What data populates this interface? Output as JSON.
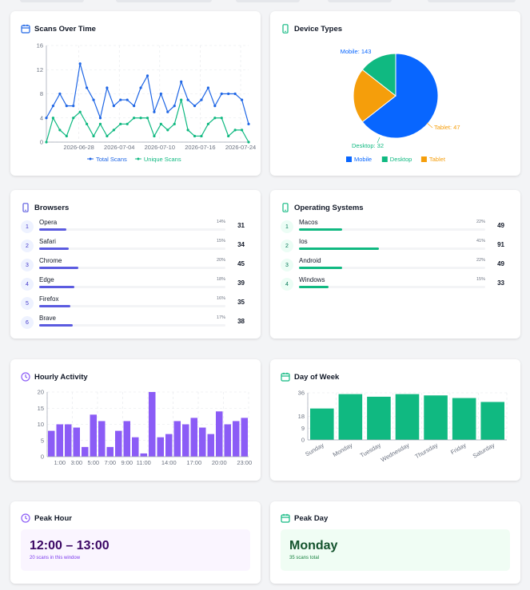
{
  "colors": {
    "blue": "#1f66e5",
    "green": "#10b981",
    "orange": "#f59e0b",
    "purple": "#8b5cf6",
    "bar_blue": "#5b5be0",
    "bar_green": "#10b981",
    "pie_blue": "#0866ff",
    "pie_green": "#10b981",
    "pie_orange": "#f59e0b"
  },
  "scans_over_time": {
    "title": "Scans Over Time",
    "icon": "calendar-icon",
    "chart_data": {
      "type": "line",
      "x_ticks": [
        "2026-06-28",
        "2026-07-04",
        "2026-07-10",
        "2026-07-16",
        "2026-07-24"
      ],
      "ylim": [
        0,
        16
      ],
      "y_ticks": [
        "0",
        "4",
        "8",
        "12",
        "16"
      ],
      "grid": true,
      "legend": "bottom",
      "series": [
        {
          "name": "Total Scans",
          "color": "#1f66e5",
          "values": [
            4,
            6,
            8,
            6,
            6,
            13,
            9,
            7,
            4,
            9,
            6,
            7,
            7,
            6,
            9,
            11,
            5,
            8,
            5,
            6,
            10,
            7,
            6,
            7,
            9,
            6,
            8,
            8,
            8,
            7,
            3
          ]
        },
        {
          "name": "Unique Scans",
          "color": "#10b981",
          "values": [
            0,
            4,
            2,
            1,
            4,
            5,
            3,
            1,
            3,
            1,
            2,
            3,
            3,
            4,
            4,
            4,
            1,
            3,
            2,
            3,
            7,
            2,
            1,
            1,
            3,
            4,
            4,
            1,
            2,
            2,
            0
          ]
        }
      ]
    }
  },
  "device_types": {
    "title": "Device Types",
    "icon": "phone-icon",
    "chart_data": {
      "type": "pie",
      "legend": "bottom",
      "slices": [
        {
          "name": "Mobile",
          "value": 143,
          "label": "Mobile: 143",
          "color": "#0866ff"
        },
        {
          "name": "Tablet",
          "value": 47,
          "label": "Tablet: 47",
          "color": "#f59e0b"
        },
        {
          "name": "Desktop",
          "value": 32,
          "label": "Desktop: 32",
          "color": "#10b981"
        }
      ],
      "legend_items": [
        "Mobile",
        "Desktop",
        "Tablet"
      ]
    }
  },
  "browsers": {
    "title": "Browsers",
    "icon": "phone-icon",
    "items": [
      {
        "rank": "1",
        "name": "Opera",
        "pct": "14%",
        "fraction": 0.14,
        "count": "31"
      },
      {
        "rank": "2",
        "name": "Safari",
        "pct": "15%",
        "fraction": 0.15,
        "count": "34"
      },
      {
        "rank": "3",
        "name": "Chrome",
        "pct": "20%",
        "fraction": 0.2,
        "count": "45"
      },
      {
        "rank": "4",
        "name": "Edge",
        "pct": "18%",
        "fraction": 0.18,
        "count": "39"
      },
      {
        "rank": "5",
        "name": "Firefox",
        "pct": "16%",
        "fraction": 0.16,
        "count": "35"
      },
      {
        "rank": "6",
        "name": "Brave",
        "pct": "17%",
        "fraction": 0.17,
        "count": "38"
      }
    ]
  },
  "operating_systems": {
    "title": "Operating Systems",
    "icon": "phone-icon",
    "items": [
      {
        "rank": "1",
        "name": "Macos",
        "pct": "22%",
        "fraction": 0.22,
        "count": "49"
      },
      {
        "rank": "2",
        "name": "Ios",
        "pct": "41%",
        "fraction": 0.41,
        "count": "91"
      },
      {
        "rank": "3",
        "name": "Android",
        "pct": "22%",
        "fraction": 0.22,
        "count": "49"
      },
      {
        "rank": "4",
        "name": "Windows",
        "pct": "15%",
        "fraction": 0.15,
        "count": "33"
      }
    ]
  },
  "hourly_activity": {
    "title": "Hourly Activity",
    "icon": "clock-icon",
    "chart_data": {
      "type": "bar",
      "categories": [
        "0:00",
        "1:00",
        "2:00",
        "3:00",
        "4:00",
        "5:00",
        "6:00",
        "7:00",
        "8:00",
        "9:00",
        "10:00",
        "11:00",
        "12:00",
        "13:00",
        "14:00",
        "15:00",
        "16:00",
        "17:00",
        "18:00",
        "19:00",
        "20:00",
        "21:00",
        "22:00",
        "23:00"
      ],
      "x_tick_labels": [
        "1:00",
        "3:00",
        "5:00",
        "7:00",
        "9:00",
        "11:00",
        "14:00",
        "17:00",
        "20:00",
        "23:00"
      ],
      "values": [
        8,
        10,
        10,
        9,
        3,
        13,
        11,
        3,
        8,
        11,
        6,
        1,
        20,
        6,
        7,
        11,
        10,
        12,
        9,
        7,
        14,
        10,
        11,
        12
      ],
      "ylim": [
        0,
        20
      ],
      "y_ticks": [
        "0",
        "5",
        "10",
        "15",
        "20"
      ],
      "grid": true
    }
  },
  "day_of_week": {
    "title": "Day of Week",
    "icon": "calendar-icon",
    "chart_data": {
      "type": "bar",
      "categories": [
        "Sunday",
        "Monday",
        "Tuesday",
        "Wednesday",
        "Thursday",
        "Friday",
        "Saturday"
      ],
      "values": [
        24,
        35,
        33,
        35,
        34,
        32,
        29
      ],
      "ylim": [
        0,
        36
      ],
      "y_ticks": [
        "0",
        "9",
        "18",
        "36"
      ],
      "grid": true
    }
  },
  "peak_hour": {
    "title": "Peak Hour",
    "icon": "clock-icon",
    "value": "12:00 – 13:00",
    "subtitle": "20 scans in this window"
  },
  "peak_day": {
    "title": "Peak Day",
    "icon": "calendar-icon",
    "value": "Monday",
    "subtitle": "35 scans total"
  }
}
